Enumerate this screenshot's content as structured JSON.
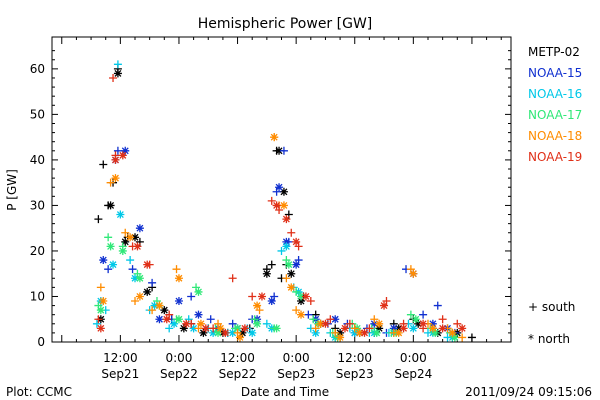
{
  "chart_data": {
    "type": "scatter",
    "title": "Hemispheric Power [GW]",
    "xlabel": "Date and Time",
    "ylabel": "P [GW]",
    "ylim": [
      0,
      67
    ],
    "yticks": [
      0,
      10,
      20,
      30,
      40,
      50,
      60
    ],
    "xlim": [
      -2,
      92
    ],
    "x_unit": "hours since 2011-09-21 00:00 UT",
    "xticks": [
      {
        "x": 12,
        "time": "12:00",
        "date": "Sep21"
      },
      {
        "x": 24,
        "time": "0:00",
        "date": "Sep22"
      },
      {
        "x": 36,
        "time": "12:00",
        "date": "Sep22"
      },
      {
        "x": 48,
        "time": "0:00",
        "date": "Sep23"
      },
      {
        "x": 60,
        "time": "12:00",
        "date": "Sep23"
      },
      {
        "x": 72,
        "time": "0:00",
        "date": "Sep24"
      }
    ],
    "legend": {
      "placement": "right",
      "marker_south": "+ south",
      "marker_north": "* north"
    },
    "grid": false,
    "series": [
      {
        "name": "METP-02",
        "color": "#000000",
        "south": [
          [
            7.5,
            27
          ],
          [
            8.5,
            39
          ],
          [
            9.5,
            30
          ],
          [
            10.5,
            35
          ],
          [
            11.5,
            60
          ],
          [
            13.5,
            23
          ],
          [
            16,
            22
          ],
          [
            18.5,
            12
          ],
          [
            22.5,
            5
          ],
          [
            26.5,
            4
          ],
          [
            30,
            3
          ],
          [
            34,
            2
          ],
          [
            38.5,
            3
          ],
          [
            42,
            16
          ],
          [
            43,
            17
          ],
          [
            44,
            42
          ],
          [
            45,
            14
          ],
          [
            46,
            17
          ],
          [
            46.5,
            28
          ],
          [
            49.5,
            10
          ],
          [
            52,
            6
          ],
          [
            56,
            3
          ],
          [
            60,
            3
          ],
          [
            64,
            2
          ],
          [
            68,
            4
          ],
          [
            72,
            5
          ],
          [
            76,
            3
          ],
          [
            80,
            2
          ],
          [
            84,
            1
          ]
        ],
        "north": [
          [
            8,
            5
          ],
          [
            10,
            30
          ],
          [
            11.5,
            59
          ],
          [
            13,
            22
          ],
          [
            15,
            23
          ],
          [
            17.5,
            11
          ],
          [
            21,
            7
          ],
          [
            25,
            3
          ],
          [
            29,
            2
          ],
          [
            33,
            2
          ],
          [
            37,
            2
          ],
          [
            42,
            15
          ],
          [
            44.5,
            42
          ],
          [
            45.5,
            33
          ],
          [
            47,
            15
          ],
          [
            49,
            9
          ],
          [
            53,
            4
          ],
          [
            57,
            2
          ],
          [
            61,
            2
          ],
          [
            65,
            3
          ],
          [
            69,
            3
          ],
          [
            73,
            4
          ],
          [
            77,
            2
          ],
          [
            81,
            2
          ]
        ]
      },
      {
        "name": "NOAA-15",
        "color": "#1030d0",
        "south": [
          [
            9.5,
            16
          ],
          [
            11.5,
            42
          ],
          [
            14.5,
            16
          ],
          [
            18.5,
            13
          ],
          [
            22.5,
            5
          ],
          [
            26.5,
            10
          ],
          [
            30.5,
            5
          ],
          [
            35,
            4
          ],
          [
            39,
            5
          ],
          [
            43.5,
            10
          ],
          [
            44,
            33
          ],
          [
            45.5,
            42
          ],
          [
            46.5,
            22
          ],
          [
            48.5,
            18
          ],
          [
            50.5,
            6
          ],
          [
            54.5,
            4
          ],
          [
            58.5,
            4
          ],
          [
            62.5,
            3
          ],
          [
            66.5,
            2
          ],
          [
            70.5,
            16
          ],
          [
            74,
            6
          ],
          [
            77,
            8
          ],
          [
            80.5,
            2
          ]
        ],
        "north": [
          [
            8.5,
            18
          ],
          [
            11,
            40
          ],
          [
            13,
            42
          ],
          [
            16,
            25
          ],
          [
            20,
            5
          ],
          [
            24,
            9
          ],
          [
            28,
            6
          ],
          [
            32,
            3
          ],
          [
            36,
            3
          ],
          [
            40,
            5
          ],
          [
            43,
            9
          ],
          [
            44.5,
            34
          ],
          [
            46,
            22
          ],
          [
            48,
            17
          ],
          [
            52,
            5
          ],
          [
            56,
            5
          ],
          [
            60,
            2
          ],
          [
            64,
            4
          ],
          [
            68,
            3
          ],
          [
            72,
            15
          ],
          [
            76,
            4
          ],
          [
            79,
            3
          ]
        ]
      },
      {
        "name": "NOAA-16",
        "color": "#00c8e8",
        "south": [
          [
            7.2,
            4
          ],
          [
            9,
            7
          ],
          [
            11.5,
            61
          ],
          [
            14,
            18
          ],
          [
            18,
            7
          ],
          [
            22,
            3
          ],
          [
            26,
            5
          ],
          [
            30,
            3
          ],
          [
            34,
            2
          ],
          [
            38,
            3
          ],
          [
            42,
            4
          ],
          [
            45,
            20
          ],
          [
            47.5,
            12
          ],
          [
            51,
            3
          ],
          [
            55,
            2
          ],
          [
            59,
            3
          ],
          [
            63,
            2
          ],
          [
            67,
            2
          ],
          [
            71,
            4
          ],
          [
            75,
            2
          ],
          [
            79,
            1
          ]
        ],
        "north": [
          [
            8,
            9
          ],
          [
            10.5,
            17
          ],
          [
            12,
            28
          ],
          [
            15,
            14
          ],
          [
            19,
            8
          ],
          [
            23,
            4
          ],
          [
            27,
            3
          ],
          [
            31,
            2
          ],
          [
            35,
            2
          ],
          [
            39,
            2
          ],
          [
            43,
            3
          ],
          [
            46,
            21
          ],
          [
            48.5,
            11
          ],
          [
            52,
            2
          ],
          [
            56,
            1
          ],
          [
            60,
            2
          ],
          [
            64,
            2
          ],
          [
            68,
            2
          ],
          [
            72,
            3
          ],
          [
            76,
            2
          ],
          [
            80,
            1
          ]
        ]
      },
      {
        "name": "NOAA-17",
        "color": "#30e878",
        "south": [
          [
            7.5,
            8
          ],
          [
            9.5,
            23
          ],
          [
            12.5,
            21
          ],
          [
            15.5,
            15
          ],
          [
            19.5,
            9
          ],
          [
            23.5,
            5
          ],
          [
            27.5,
            12
          ],
          [
            31.5,
            3
          ],
          [
            35.5,
            3
          ],
          [
            39.5,
            5
          ],
          [
            43.5,
            3
          ],
          [
            46,
            18
          ],
          [
            48,
            11
          ],
          [
            51.5,
            5
          ],
          [
            55.5,
            2
          ],
          [
            59.5,
            4
          ],
          [
            63.5,
            3
          ],
          [
            67.5,
            2
          ],
          [
            71.5,
            6
          ],
          [
            75.5,
            3
          ],
          [
            79.5,
            2
          ]
        ],
        "north": [
          [
            8,
            7
          ],
          [
            10,
            21
          ],
          [
            12.5,
            20
          ],
          [
            16,
            14
          ],
          [
            20,
            8
          ],
          [
            24,
            5
          ],
          [
            28,
            11
          ],
          [
            32,
            2
          ],
          [
            36,
            3
          ],
          [
            40,
            4
          ],
          [
            44,
            3
          ],
          [
            46.5,
            17
          ],
          [
            49,
            10
          ],
          [
            52.5,
            4
          ],
          [
            56.5,
            1
          ],
          [
            60.5,
            3
          ],
          [
            64.5,
            2
          ],
          [
            68.5,
            2
          ],
          [
            72.5,
            5
          ],
          [
            76.5,
            2
          ],
          [
            80.5,
            1
          ]
        ]
      },
      {
        "name": "NOAA-18",
        "color": "#ff8c00",
        "south": [
          [
            8,
            12
          ],
          [
            10,
            35
          ],
          [
            13,
            24
          ],
          [
            15,
            9
          ],
          [
            18.5,
            7
          ],
          [
            23.5,
            16
          ],
          [
            28,
            3
          ],
          [
            32,
            4
          ],
          [
            36,
            2
          ],
          [
            40.5,
            7
          ],
          [
            43.5,
            45
          ],
          [
            44.5,
            30
          ],
          [
            46,
            14
          ],
          [
            48,
            7
          ],
          [
            52,
            3
          ],
          [
            56,
            2
          ],
          [
            60,
            3
          ],
          [
            64,
            5
          ],
          [
            68,
            2
          ],
          [
            71.5,
            16
          ],
          [
            75,
            4
          ],
          [
            79,
            3
          ],
          [
            82,
            1
          ]
        ],
        "north": [
          [
            8.5,
            9
          ],
          [
            11,
            36
          ],
          [
            14,
            23
          ],
          [
            16,
            10
          ],
          [
            20,
            8
          ],
          [
            24,
            14
          ],
          [
            28.5,
            4
          ],
          [
            32.5,
            3
          ],
          [
            36.5,
            1
          ],
          [
            40,
            8
          ],
          [
            43.5,
            45
          ],
          [
            45.5,
            30
          ],
          [
            47,
            12
          ],
          [
            49,
            6
          ],
          [
            53,
            4
          ],
          [
            57,
            1
          ],
          [
            61,
            2
          ],
          [
            65,
            4
          ],
          [
            69,
            2
          ],
          [
            72,
            15
          ],
          [
            76,
            3
          ],
          [
            80,
            2
          ]
        ]
      },
      {
        "name": "NOAA-19",
        "color": "#e03018",
        "south": [
          [
            7.5,
            5
          ],
          [
            10.5,
            58
          ],
          [
            11,
            41
          ],
          [
            14.5,
            21
          ],
          [
            18,
            17
          ],
          [
            22,
            6
          ],
          [
            26.5,
            4
          ],
          [
            31,
            3
          ],
          [
            35,
            14
          ],
          [
            39,
            10
          ],
          [
            43,
            31
          ],
          [
            44.5,
            29
          ],
          [
            47,
            24
          ],
          [
            48.5,
            21
          ],
          [
            51,
            9
          ],
          [
            55,
            5
          ],
          [
            59,
            4
          ],
          [
            63,
            3
          ],
          [
            66.5,
            9
          ],
          [
            70,
            4
          ],
          [
            74,
            3
          ],
          [
            78,
            5
          ],
          [
            81,
            4
          ]
        ],
        "north": [
          [
            8,
            3
          ],
          [
            11,
            40
          ],
          [
            12.5,
            41
          ],
          [
            15.5,
            21
          ],
          [
            17.5,
            17
          ],
          [
            21.5,
            5
          ],
          [
            25.5,
            4
          ],
          [
            29.5,
            3
          ],
          [
            33.5,
            2
          ],
          [
            37.5,
            3
          ],
          [
            41,
            10
          ],
          [
            44,
            30
          ],
          [
            46,
            27
          ],
          [
            48,
            22
          ],
          [
            50,
            10
          ],
          [
            54,
            4
          ],
          [
            58,
            3
          ],
          [
            62,
            2
          ],
          [
            66,
            8
          ],
          [
            70,
            3
          ],
          [
            74,
            4
          ],
          [
            78,
            3
          ],
          [
            82,
            3
          ]
        ]
      }
    ]
  },
  "footer": {
    "left": "Plot: CCMC",
    "center": "Date and Time",
    "right": "2011/09/24 09:15:06"
  }
}
